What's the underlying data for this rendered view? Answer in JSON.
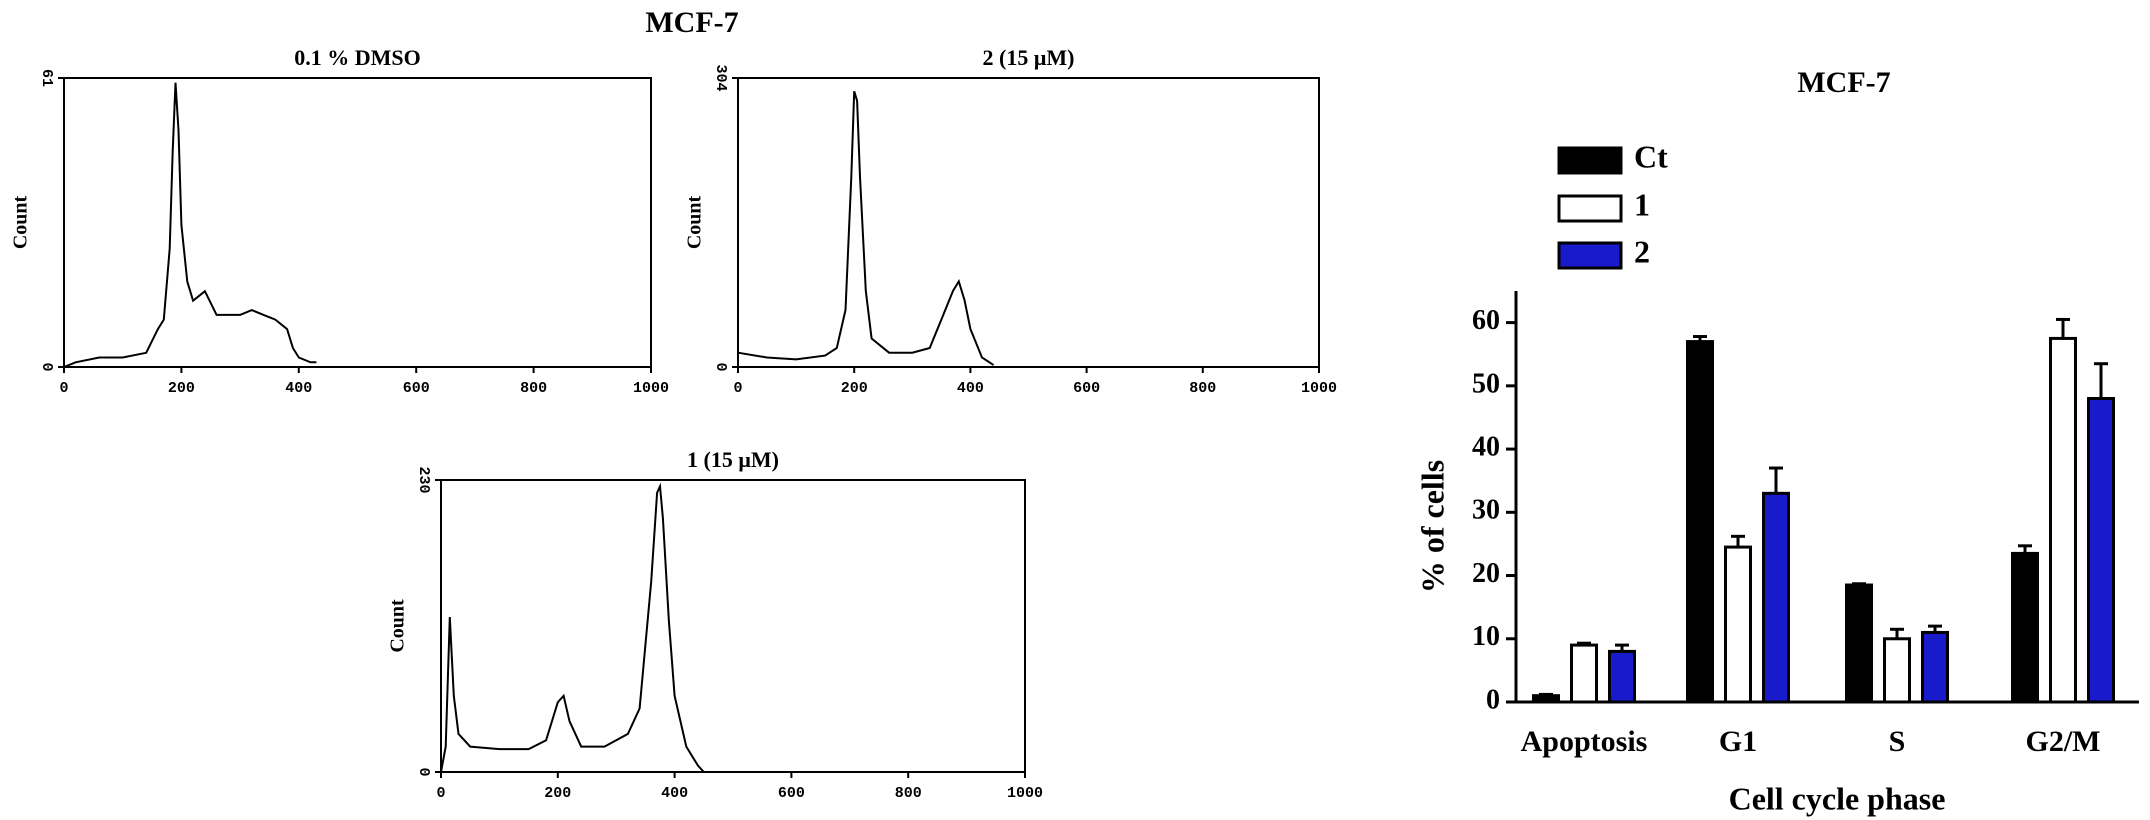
{
  "figure_title": "MCF-7",
  "chart_data": [
    {
      "type": "line",
      "title": "0.1 % DMSO",
      "y_label": "Count",
      "color": "#000000",
      "x": [
        0,
        20,
        60,
        100,
        140,
        160,
        170,
        180,
        185,
        190,
        195,
        200,
        210,
        220,
        240,
        260,
        280,
        300,
        320,
        340,
        360,
        380,
        390,
        400,
        420,
        430
      ],
      "values": [
        0,
        1,
        2,
        2,
        3,
        8,
        10,
        25,
        45,
        60,
        50,
        30,
        18,
        14,
        16,
        11,
        11,
        11,
        12,
        11,
        10,
        8,
        4,
        2,
        1,
        1
      ],
      "xlim": [
        0,
        1000
      ],
      "ylim": [
        0,
        61
      ],
      "xticks": [
        0,
        200,
        400,
        600,
        800,
        1000
      ],
      "yticks": [
        0,
        61
      ]
    },
    {
      "type": "line",
      "title": "2 (15 μM)",
      "y_label": "Count",
      "color": "#000000",
      "x": [
        0,
        50,
        100,
        150,
        170,
        185,
        195,
        200,
        205,
        210,
        220,
        230,
        260,
        300,
        330,
        350,
        370,
        380,
        390,
        400,
        420,
        440
      ],
      "values": [
        15,
        10,
        8,
        12,
        20,
        60,
        200,
        290,
        280,
        200,
        80,
        30,
        15,
        15,
        20,
        50,
        80,
        90,
        70,
        40,
        10,
        2
      ],
      "xlim": [
        0,
        1000
      ],
      "ylim": [
        0,
        304
      ],
      "xticks": [
        0,
        200,
        400,
        600,
        800,
        1000
      ],
      "yticks": [
        0,
        304
      ]
    },
    {
      "type": "line",
      "title": "1 (15 μM)",
      "y_label": "Count",
      "color": "#000000",
      "x": [
        0,
        8,
        15,
        22,
        30,
        50,
        100,
        150,
        180,
        200,
        210,
        220,
        240,
        280,
        320,
        340,
        360,
        370,
        375,
        380,
        390,
        400,
        420,
        440,
        450
      ],
      "values": [
        0,
        20,
        122,
        60,
        30,
        20,
        18,
        18,
        25,
        55,
        60,
        40,
        20,
        20,
        30,
        50,
        150,
        220,
        225,
        200,
        120,
        60,
        20,
        5,
        0
      ],
      "xlim": [
        0,
        1000
      ],
      "ylim": [
        0,
        230
      ],
      "xticks": [
        0,
        200,
        400,
        600,
        800,
        1000
      ],
      "yticks": [
        0,
        230
      ]
    },
    {
      "type": "bar",
      "title": "MCF-7",
      "y_label": "% of cells",
      "x_label": "Cell cycle phase",
      "categories": [
        "Apoptosis",
        "G1",
        "S",
        "G2/M"
      ],
      "series": [
        {
          "name": "Ct",
          "color": "#000000",
          "values": [
            1,
            57,
            18.5,
            23.5
          ],
          "errors": [
            0.2,
            0.8,
            0.2,
            1.2
          ]
        },
        {
          "name": "1",
          "color": "#ffffff",
          "values": [
            9,
            24.5,
            10,
            57.5
          ],
          "errors": [
            0.3,
            1.7,
            1.5,
            3
          ]
        },
        {
          "name": "2",
          "color": "#1a1acd",
          "values": [
            8,
            33,
            11,
            48
          ],
          "errors": [
            1,
            4,
            1,
            5.5
          ]
        }
      ],
      "ylim": [
        0,
        65
      ],
      "yticks": [
        0,
        10,
        20,
        30,
        40,
        50,
        60
      ],
      "legend": "top-left"
    }
  ]
}
